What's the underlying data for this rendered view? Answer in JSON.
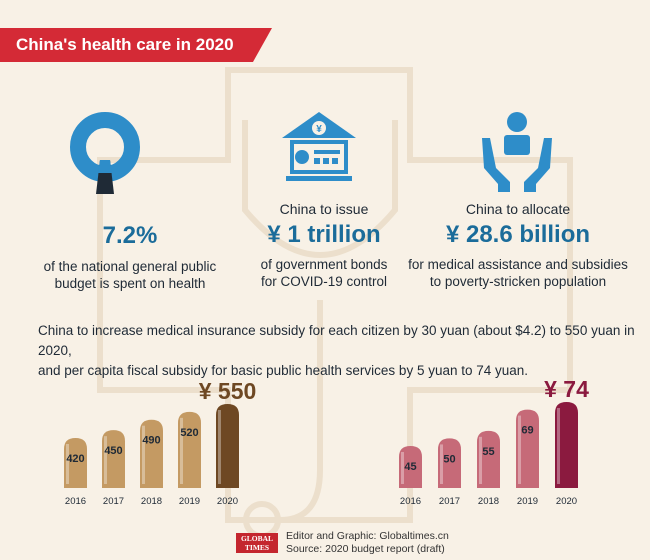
{
  "title": "China's health care in 2020",
  "stats": [
    {
      "lead": "",
      "value": "7.2%",
      "desc": [
        "of the national general public",
        "budget is spent on health"
      ]
    },
    {
      "lead": "China to issue",
      "value": "¥ 1 trillion",
      "desc": [
        "of government bonds",
        "for COVID-19 control"
      ]
    },
    {
      "lead": "China to allocate",
      "value": "¥ 28.6 billion",
      "desc": [
        "for medical assistance and subsidies",
        "to poverty-stricken population"
      ]
    }
  ],
  "body": [
    "China to increase medical insurance subsidy for each citizen by 30 yuan (about $4.2) to 550 yuan in 2020,",
    "and per capita fiscal subsidy for basic public health services by 5 yuan to 74 yuan."
  ],
  "colors": {
    "banner": "#d42a36",
    "stat_value": "#1b6c9a",
    "icon_blue": "#2e8dc9",
    "insurance_bar": "#c49a63",
    "insurance_highlight": "#6e4823",
    "health_bar": "#c66a78",
    "health_highlight": "#8b1a3f"
  },
  "icons": [
    "pie-ring-icon",
    "bank-bond-icon",
    "hands-person-icon",
    "stethoscope-cross-background"
  ],
  "chart_data": [
    {
      "type": "bar",
      "categories": [
        "2016",
        "2017",
        "2018",
        "2019",
        "2020"
      ],
      "values": [
        420,
        450,
        490,
        520,
        550
      ],
      "data_labels": [
        "420",
        "450",
        "490",
        "520",
        "¥ 550"
      ],
      "highlight_color": "#6e4823",
      "bar_color": "#c49a63"
    },
    {
      "type": "bar",
      "categories": [
        "2016",
        "2017",
        "2018",
        "2019",
        "2020"
      ],
      "values": [
        45,
        50,
        55,
        69,
        74
      ],
      "data_labels": [
        "45",
        "50",
        "55",
        "69",
        "¥ 74"
      ],
      "highlight_color": "#8b1a3f",
      "bar_color": "#c66a78"
    }
  ],
  "credit": {
    "line1": "Editor and Graphic: Globaltimes.cn",
    "line2": "Source: 2020 budget report (draft)",
    "logo_top": "GLOBAL",
    "logo_bottom": "TIMES"
  }
}
